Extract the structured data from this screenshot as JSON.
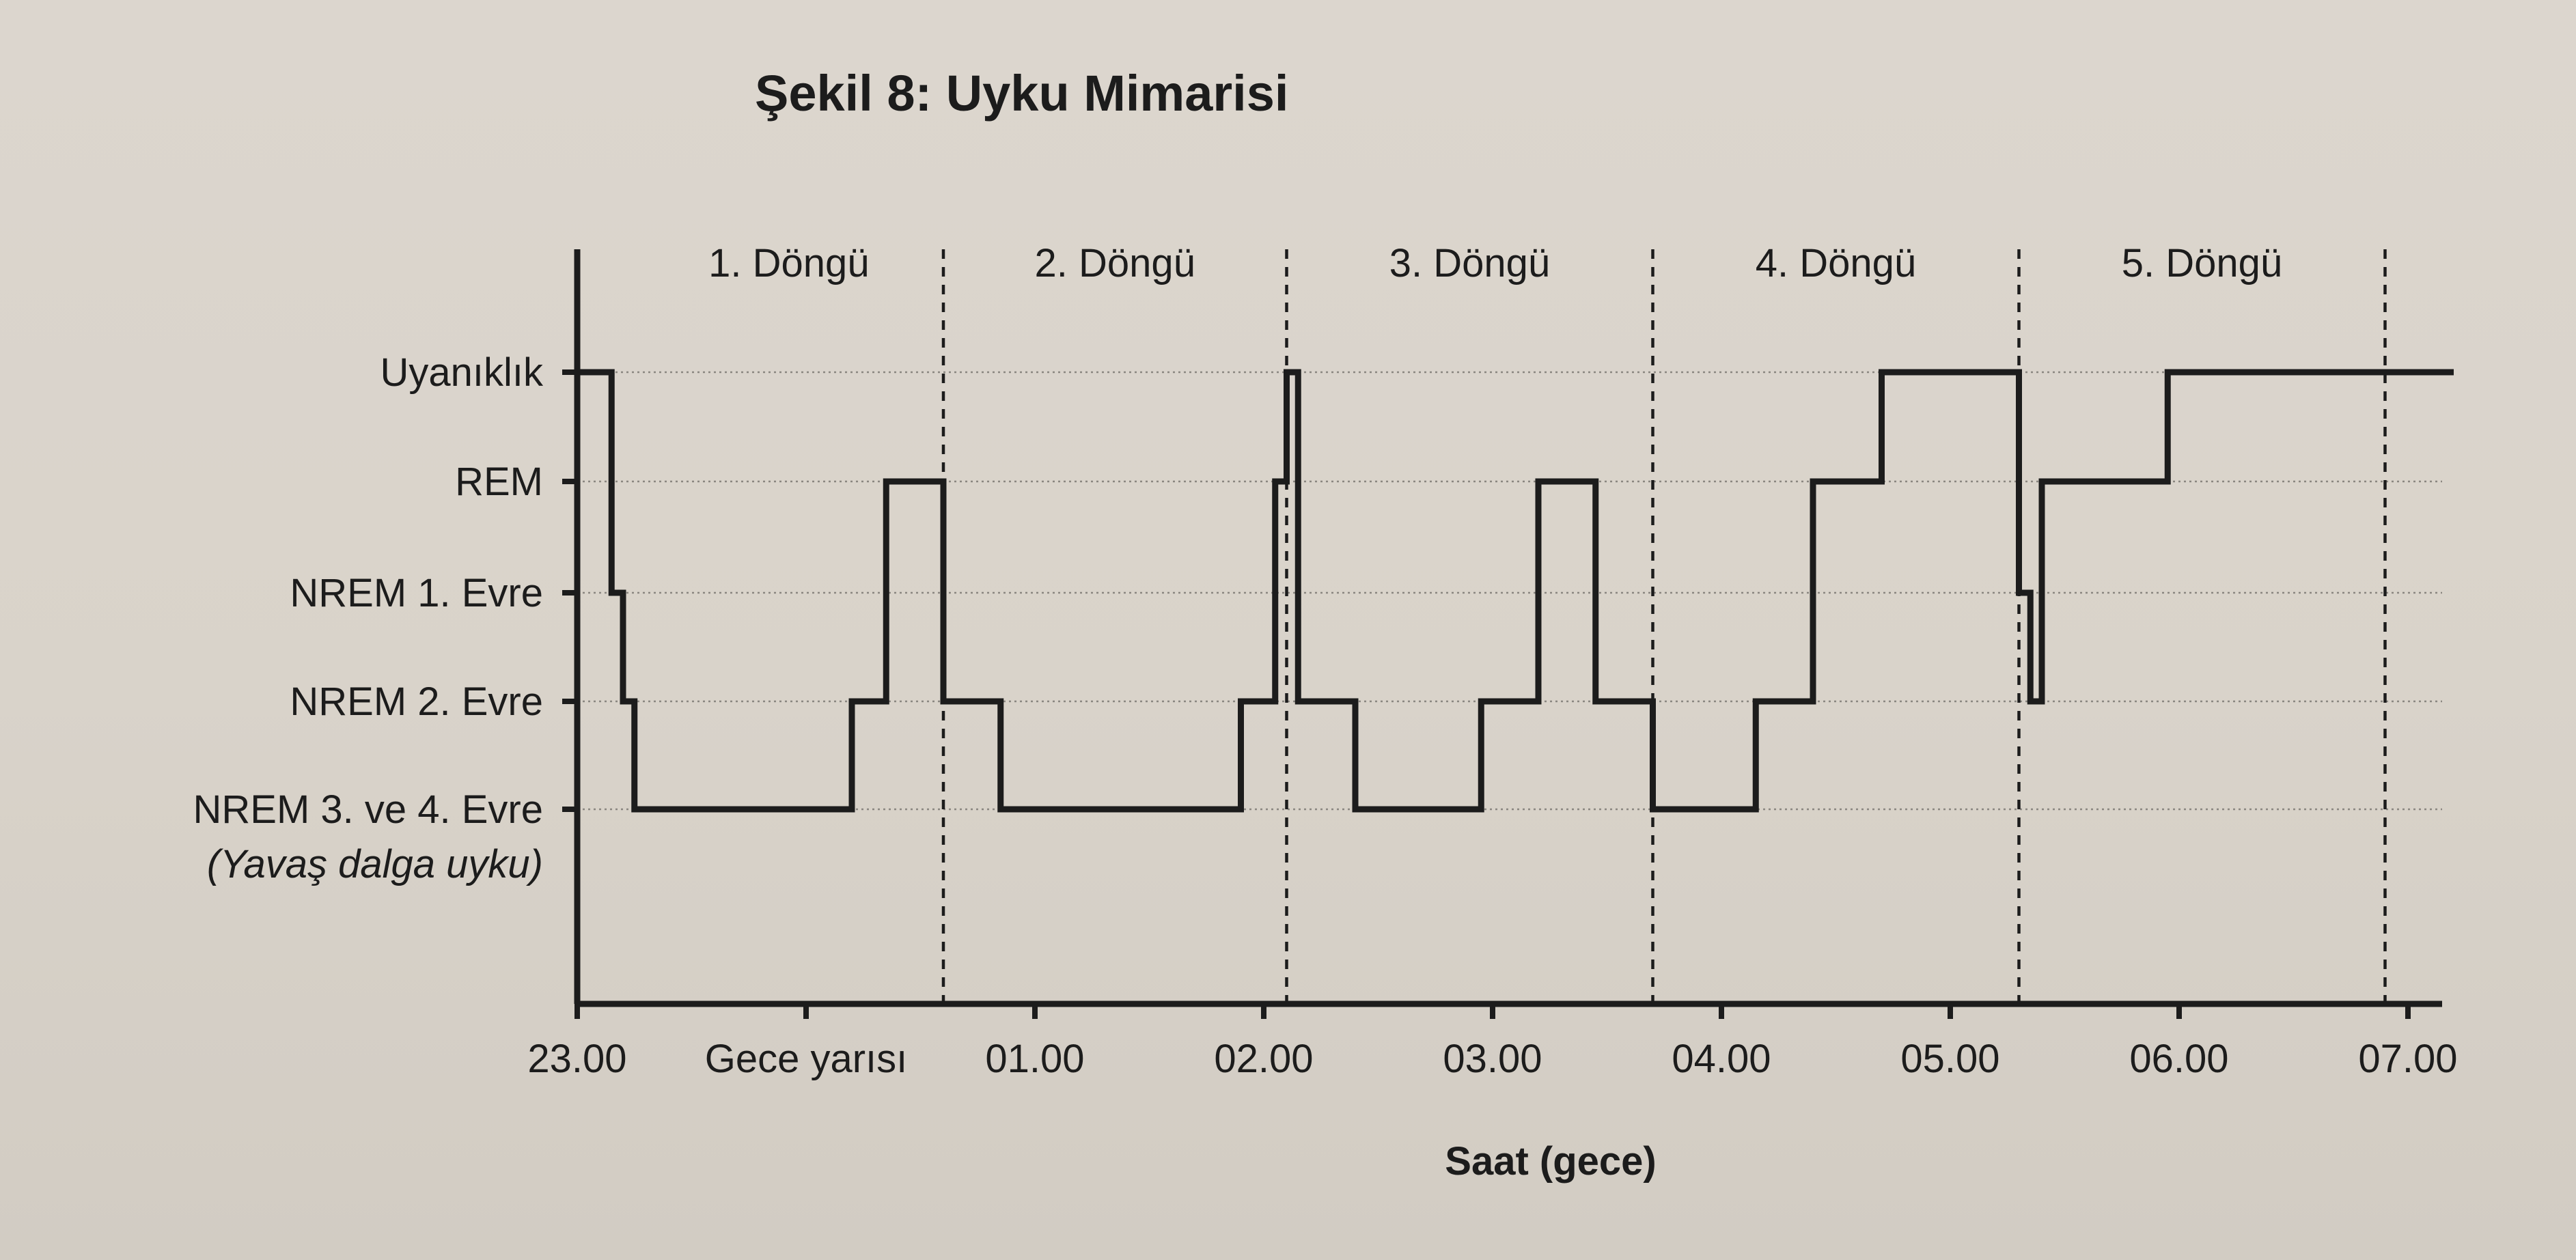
{
  "chart_data": {
    "type": "line",
    "title": "Şekil 8: Uyku Mimarisi",
    "xlabel": "Saat (gece)",
    "ylabel": "",
    "x_ticks": [
      {
        "label": "23.00",
        "hour": 0
      },
      {
        "label": "Gece yarısı",
        "hour": 1
      },
      {
        "label": "01.00",
        "hour": 2
      },
      {
        "label": "02.00",
        "hour": 3
      },
      {
        "label": "03.00",
        "hour": 4
      },
      {
        "label": "04.00",
        "hour": 5
      },
      {
        "label": "05.00",
        "hour": 6
      },
      {
        "label": "06.00",
        "hour": 7
      },
      {
        "label": "07.00",
        "hour": 8
      }
    ],
    "xlim": [
      0,
      8.2
    ],
    "y_levels": [
      {
        "label": "Uyanıklık",
        "level": 4
      },
      {
        "label": "REM",
        "level": 3
      },
      {
        "label": "NREM 1. Evre",
        "level": 2
      },
      {
        "label": "NREM 2. Evre",
        "level": 1
      },
      {
        "label": "NREM 3. ve 4. Evre",
        "sublabel": "(Yavaş dalga uyku)",
        "level": 0
      }
    ],
    "ylim": [
      -1.8,
      4.5
    ],
    "grid": true,
    "cycles": [
      {
        "label": "1. Döngü",
        "end_hour": 1.6
      },
      {
        "label": "2. Döngü",
        "end_hour": 3.1
      },
      {
        "label": "3. Döngü",
        "end_hour": 4.7
      },
      {
        "label": "4. Döngü",
        "end_hour": 6.3
      },
      {
        "label": "5. Döngü",
        "end_hour": 7.9
      }
    ],
    "series": [
      {
        "hours": [
          0.0,
          0.15,
          0.15,
          0.2,
          0.2,
          0.25,
          0.25,
          1.2,
          1.2,
          1.35,
          1.35,
          1.6,
          1.6,
          1.85,
          1.85,
          2.9,
          2.9,
          3.05,
          3.05,
          3.1,
          3.1,
          3.15,
          3.15,
          3.4,
          3.4,
          3.95,
          3.95,
          4.2,
          4.2,
          4.45,
          4.45,
          4.7,
          4.7,
          5.15,
          5.15,
          5.4,
          5.4,
          5.7,
          5.7,
          6.3,
          6.3,
          6.35,
          6.35,
          6.4,
          6.4,
          6.95,
          6.95,
          7.9,
          7.9,
          8.2
        ],
        "stage": [
          4,
          4,
          2,
          2,
          1,
          1,
          0,
          0,
          1,
          1,
          3,
          3,
          1,
          1,
          0,
          0,
          1,
          1,
          3,
          3,
          4,
          4,
          1,
          1,
          0,
          0,
          1,
          1,
          3,
          3,
          1,
          1,
          0,
          0,
          1,
          1,
          3,
          3,
          4,
          4,
          2,
          2,
          1,
          1,
          3,
          3,
          4,
          4,
          4,
          4
        ]
      }
    ]
  },
  "colors": {
    "ink": "#1c1c1c",
    "grid": "#8a8680",
    "paper": "#dcd6ce"
  }
}
